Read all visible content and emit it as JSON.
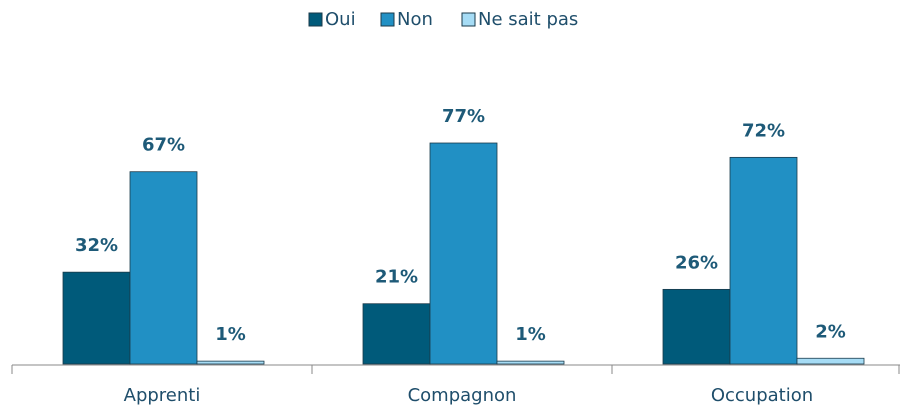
{
  "chart_data": {
    "type": "bar",
    "categories": [
      "Apprenti",
      "Compagnon",
      "Occupation"
    ],
    "series": [
      {
        "name": "Oui",
        "color": "#005a7a",
        "values": [
          32,
          21,
          26
        ],
        "value_labels": [
          "32%",
          "21%",
          "26%"
        ]
      },
      {
        "name": "Non",
        "color": "#2190c4",
        "values": [
          67,
          77,
          72
        ],
        "value_labels": [
          "67%",
          "77%",
          "72%"
        ]
      },
      {
        "name": "Ne sait pas",
        "color": "#a6dcf5",
        "values": [
          1,
          1,
          2
        ],
        "value_labels": [
          "1%",
          "1%",
          "2%"
        ]
      }
    ],
    "ylim": [
      0,
      100
    ],
    "legend": "top"
  }
}
